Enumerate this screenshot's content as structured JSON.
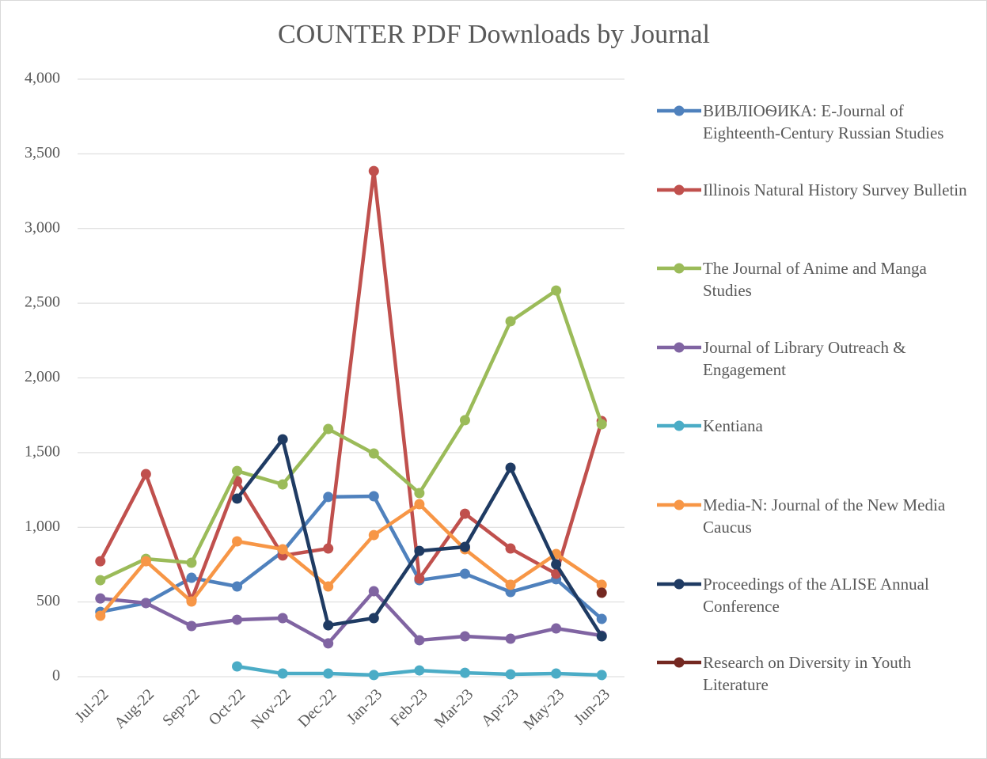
{
  "chart_data": {
    "type": "line",
    "title": "COUNTER PDF Downloads by Journal",
    "categories": [
      "Jul-22",
      "Aug-22",
      "Sep-22",
      "Oct-22",
      "Nov-22",
      "Dec-22",
      "Jan-23",
      "Feb-23",
      "Mar-23",
      "Apr-23",
      "May-23",
      "Jun-23"
    ],
    "ylim": [
      0,
      4000
    ],
    "yticks": [
      0,
      {
        "value": 500,
        "label": "500"
      },
      {
        "value": 1000,
        "label": "1,000"
      },
      {
        "value": 1500,
        "label": "1,500"
      },
      {
        "value": 2000,
        "label": "2,000"
      },
      {
        "value": 2500,
        "label": "2,500"
      },
      {
        "value": 3000,
        "label": "3,000"
      },
      {
        "value": 3500,
        "label": "3,500"
      },
      {
        "value": 4000,
        "label": "4,000"
      }
    ],
    "grid": true,
    "legend": "right",
    "series": [
      {
        "name": "ВИВЛІОѲИКА: E-Journal of Eighteenth-Century Russian Studies",
        "color": "#4f81bd",
        "values": [
          434,
          493,
          662,
          604,
          837,
          1203,
          1208,
          646,
          689,
          567,
          652,
          387
        ]
      },
      {
        "name": "Illinois Natural History Survey Bulletin",
        "color": "#c0504d",
        "values": [
          773,
          1356,
          514,
          1309,
          811,
          858,
          3385,
          657,
          1091,
          858,
          689,
          1711
        ]
      },
      {
        "name": "The Journal of Anime and Manga Studies",
        "color": "#9bbb59",
        "values": [
          646,
          789,
          763,
          1377,
          1287,
          1658,
          1494,
          1229,
          1717,
          2379,
          2585,
          1690
        ]
      },
      {
        "name": "Journal of Library Outreach & Engagement",
        "color": "#8064a2",
        "values": [
          524,
          493,
          339,
          381,
          392,
          223,
          572,
          244,
          270,
          254,
          323,
          275
        ]
      },
      {
        "name": "Kentiana",
        "color": "#4bacc6",
        "values": [
          null,
          null,
          null,
          69,
          21,
          21,
          11,
          42,
          26,
          16,
          21,
          11
        ]
      },
      {
        "name": "Media-N: Journal of the New Media Caucus",
        "color": "#f79646",
        "values": [
          408,
          773,
          503,
          906,
          853,
          604,
          948,
          1155,
          853,
          615,
          821,
          615
        ]
      },
      {
        "name": "Proceedings of the ALISE Annual Conference",
        "color": "#1f3b63",
        "values": [
          null,
          null,
          null,
          1192,
          1589,
          344,
          392,
          842,
          869,
          1399,
          752,
          270
        ]
      },
      {
        "name": "Research on Diversity in Youth Literature",
        "color": "#742821",
        "values": [
          null,
          null,
          null,
          null,
          null,
          null,
          null,
          null,
          null,
          null,
          null,
          562
        ]
      }
    ]
  }
}
